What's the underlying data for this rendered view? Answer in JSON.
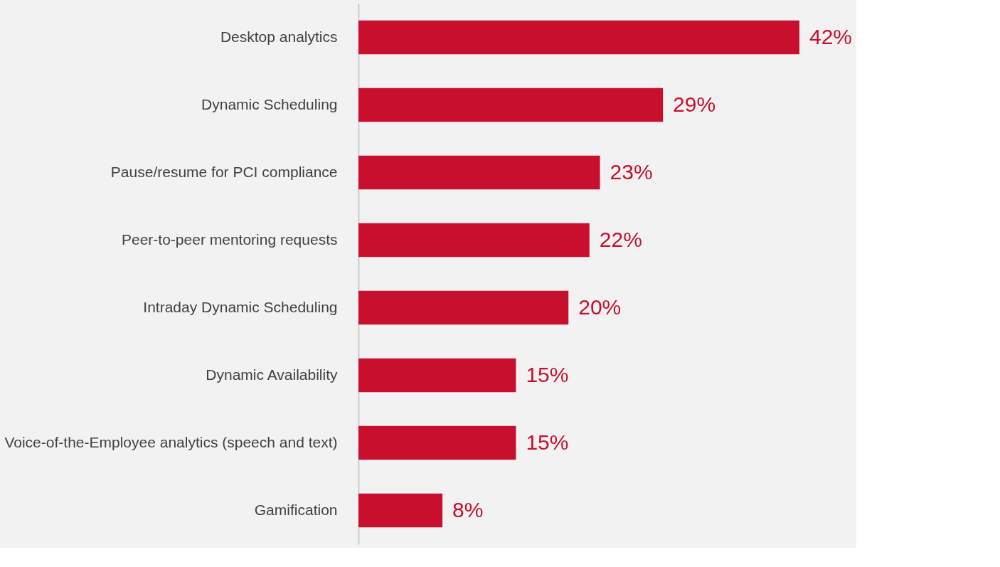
{
  "chart_data": {
    "type": "bar",
    "orientation": "horizontal",
    "categories": [
      "Desktop analytics",
      "Dynamic Scheduling",
      "Pause/resume for PCI compliance",
      "Peer-to-peer mentoring requests",
      "Intraday Dynamic Scheduling",
      "Dynamic Availability",
      "Voice-of-the-Employee analytics (speech and text)",
      "Gamification"
    ],
    "values": [
      42,
      29,
      23,
      22,
      20,
      15,
      15,
      8
    ],
    "value_labels": [
      "42%",
      "29%",
      "23%",
      "22%",
      "20%",
      "15%",
      "15%",
      "8%"
    ],
    "color": "#c8102e",
    "grid": false
  }
}
